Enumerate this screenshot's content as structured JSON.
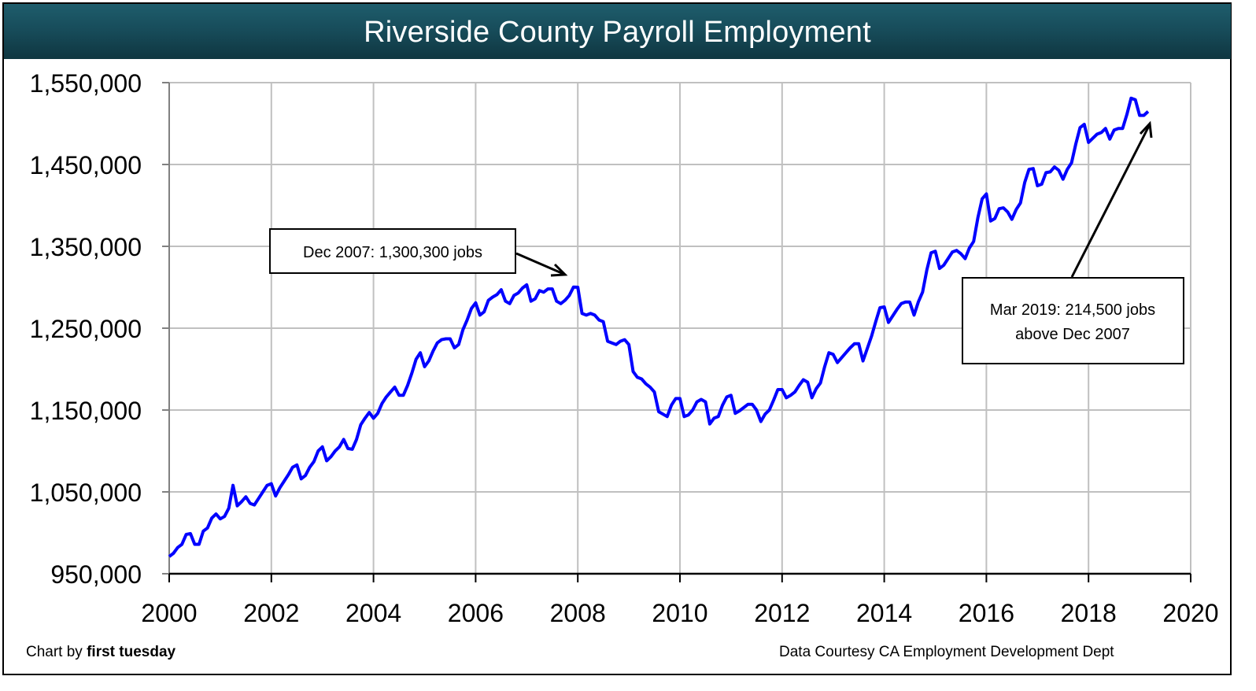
{
  "title": "Riverside County Payroll Employment",
  "footer": {
    "credit_prefix": "Chart by",
    "credit_brand": "first tuesday",
    "source": "Data Courtesy CA Employment Development Dept"
  },
  "colors": {
    "title_bar": "#174b59",
    "line": "#0000ff",
    "grid": "#c0c0c0",
    "axis": "#000000"
  },
  "annotations": [
    {
      "id": "peak",
      "text": "Dec 2007: 1,300,300 jobs"
    },
    {
      "id": "latest",
      "line1": "Mar 2019: 214,500 jobs",
      "line2": "above Dec 2007"
    }
  ],
  "chart_data": {
    "type": "line",
    "title": "Riverside County Payroll Employment",
    "xlabel": "",
    "ylabel": "",
    "xlim": [
      2000,
      2020
    ],
    "ylim": [
      950000,
      1550000
    ],
    "x_ticks": [
      "2000",
      "2002",
      "2004",
      "2006",
      "2008",
      "2010",
      "2012",
      "2014",
      "2016",
      "2018",
      "2020"
    ],
    "y_ticks": [
      "950,000",
      "1,050,000",
      "1,150,000",
      "1,250,000",
      "1,350,000",
      "1,450,000",
      "1,550,000"
    ],
    "grid": true,
    "legend": null,
    "series": [
      {
        "name": "Payroll Employment",
        "start": "2000-01",
        "frequency": "monthly",
        "values": [
          971000,
          975000,
          982000,
          986000,
          998000,
          999000,
          986000,
          986000,
          1002000,
          1006000,
          1018000,
          1023000,
          1017000,
          1020000,
          1030000,
          1058000,
          1033000,
          1038000,
          1044000,
          1036000,
          1034000,
          1042000,
          1050000,
          1058000,
          1060000,
          1045000,
          1055000,
          1063000,
          1071000,
          1080000,
          1083000,
          1066000,
          1070000,
          1080000,
          1087000,
          1100000,
          1105000,
          1088000,
          1093000,
          1100000,
          1105000,
          1114000,
          1103000,
          1102000,
          1114000,
          1132000,
          1140000,
          1147000,
          1140000,
          1146000,
          1158000,
          1166000,
          1172000,
          1178000,
          1168000,
          1168000,
          1180000,
          1195000,
          1212000,
          1220000,
          1203000,
          1210000,
          1222000,
          1232000,
          1236000,
          1237000,
          1237000,
          1226000,
          1230000,
          1248000,
          1260000,
          1274000,
          1281000,
          1266000,
          1270000,
          1284000,
          1288000,
          1291000,
          1297000,
          1283000,
          1280000,
          1290000,
          1293000,
          1299000,
          1303000,
          1283000,
          1286000,
          1296000,
          1294000,
          1298000,
          1298000,
          1283000,
          1280000,
          1284000,
          1290000,
          1300300,
          1300000,
          1268000,
          1266000,
          1268000,
          1266000,
          1260000,
          1258000,
          1234000,
          1232000,
          1230000,
          1234000,
          1236000,
          1230000,
          1197000,
          1190000,
          1188000,
          1182000,
          1178000,
          1172000,
          1148000,
          1145000,
          1142000,
          1156000,
          1164000,
          1164000,
          1142000,
          1144000,
          1150000,
          1160000,
          1163000,
          1160000,
          1133000,
          1140000,
          1142000,
          1156000,
          1166000,
          1168000,
          1146000,
          1149000,
          1153000,
          1157000,
          1157000,
          1150000,
          1136000,
          1145000,
          1150000,
          1162000,
          1175000,
          1175000,
          1165000,
          1168000,
          1172000,
          1180000,
          1187000,
          1184000,
          1165000,
          1176000,
          1183000,
          1203000,
          1220000,
          1218000,
          1208000,
          1214000,
          1220000,
          1226000,
          1231000,
          1231000,
          1210000,
          1225000,
          1240000,
          1258000,
          1275000,
          1276000,
          1257000,
          1265000,
          1273000,
          1280000,
          1282000,
          1282000,
          1266000,
          1282000,
          1294000,
          1321000,
          1342000,
          1344000,
          1323000,
          1327000,
          1335000,
          1343000,
          1345000,
          1341000,
          1335000,
          1348000,
          1356000,
          1385000,
          1408000,
          1414000,
          1381000,
          1384000,
          1396000,
          1397000,
          1392000,
          1383000,
          1395000,
          1403000,
          1428000,
          1444000,
          1445000,
          1424000,
          1426000,
          1440000,
          1441000,
          1447000,
          1443000,
          1432000,
          1444000,
          1452000,
          1475000,
          1495000,
          1499000,
          1477000,
          1482000,
          1487000,
          1489000,
          1494000,
          1481000,
          1492000,
          1494000,
          1494000,
          1511000,
          1531000,
          1529000,
          1510000,
          1510000,
          1514800
        ]
      }
    ]
  }
}
